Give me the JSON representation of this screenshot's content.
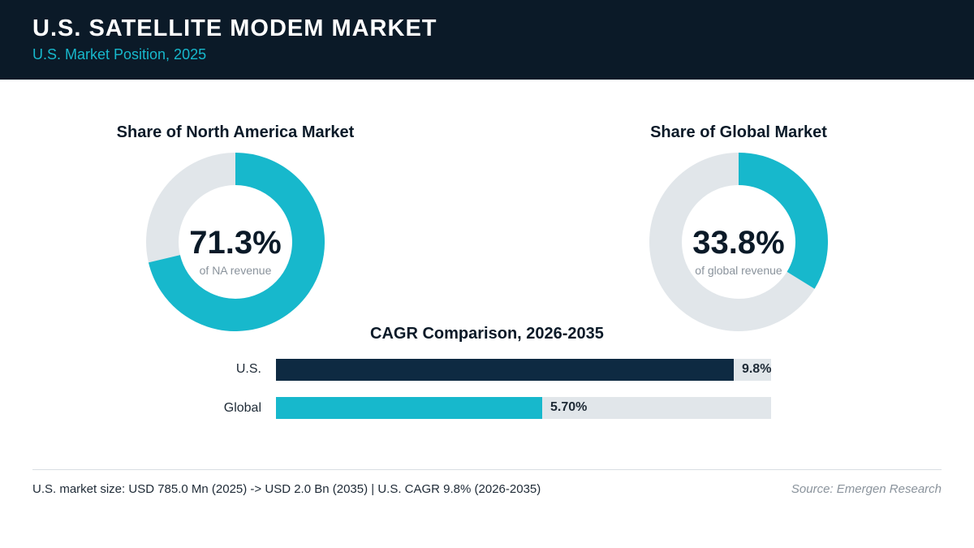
{
  "header": {
    "title": "U.S. SATELLITE MODEM MARKET",
    "subtitle": "U.S. Market Position, 2025"
  },
  "colors": {
    "navy": "#0b1a28",
    "bar_navy": "#0e2a42",
    "teal": "#17b8cc",
    "track": "#e1e6ea"
  },
  "footer": {
    "note": "U.S. market size: USD 785.0 Mn (2025) -> USD 2.0 Bn (2035)  |  U.S. CAGR 9.8% (2026-2035)",
    "source": "Source: Emergen Research"
  },
  "chart_data": [
    {
      "type": "pie",
      "title": "Share of North America Market",
      "value": 71.3,
      "value_label": "71.3%",
      "caption": "of NA revenue",
      "max": 100
    },
    {
      "type": "pie",
      "title": "Share of Global Market",
      "value": 33.8,
      "value_label": "33.8%",
      "caption": "of global revenue",
      "max": 100
    },
    {
      "type": "bar",
      "title": "CAGR Comparison, 2026-2035",
      "categories": [
        "U.S.",
        "Global"
      ],
      "values": [
        9.8,
        5.7
      ],
      "value_labels": [
        "9.8%",
        "5.70%"
      ],
      "xlim": [
        0,
        10.6
      ]
    }
  ]
}
